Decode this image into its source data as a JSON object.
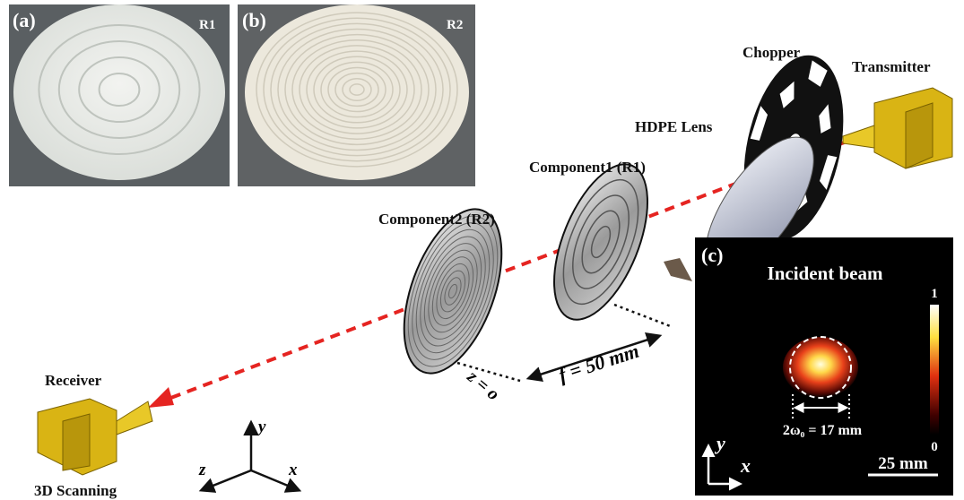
{
  "panel_a": {
    "label": "(a)",
    "tag": "R1"
  },
  "panel_b": {
    "label": "(b)",
    "tag": "R2"
  },
  "setup": {
    "chopper": "Chopper",
    "transmitter": "Transmitter",
    "lens": "HDPE Lens",
    "component1": "Component1 (R1)",
    "component2": "Component2 (R2)",
    "receiver": "Receiver",
    "scanning": "3D Scanning",
    "focal": "f = 50 mm",
    "z_origin": "z = o",
    "axes": {
      "y": "y",
      "z": "z",
      "x": "x"
    }
  },
  "panel_c": {
    "label": "(c)",
    "title": "Incident beam",
    "colorbar_max": 1,
    "colorbar_min": 0,
    "beam_width": "2ω₀ = 17 mm",
    "scale_bar": "25 mm",
    "axes": {
      "y": "y",
      "x": "x"
    }
  }
}
